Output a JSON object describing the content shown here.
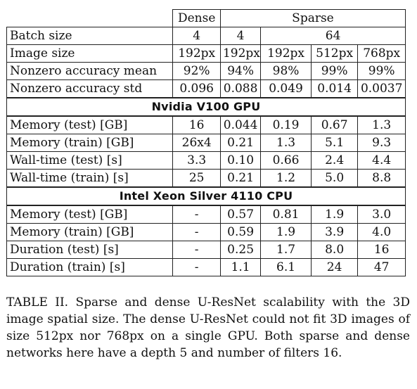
{
  "table": {
    "header": {
      "dense": "Dense",
      "sparse": "Sparse"
    },
    "rows_top": [
      {
        "label": "Batch size",
        "cells": [
          "4",
          "4",
          "64"
        ]
      },
      {
        "label": "Image size",
        "cells": [
          "192px",
          "192px",
          "192px",
          "512px",
          "768px"
        ]
      },
      {
        "label": "Nonzero accuracy mean",
        "cells": [
          "92%",
          "94%",
          "98%",
          "99%",
          "99%"
        ]
      },
      {
        "label": "Nonzero accuracy std",
        "cells": [
          "0.096",
          "0.088",
          "0.049",
          "0.014",
          "0.0037"
        ]
      }
    ],
    "section_gpu": "Nvidia V100 GPU",
    "rows_gpu": [
      {
        "label": "Memory (test) [GB]",
        "cells": [
          "16",
          "0.044",
          "0.19",
          "0.67",
          "1.3"
        ]
      },
      {
        "label": "Memory (train) [GB]",
        "cells": [
          "26x4",
          "0.21",
          "1.3",
          "5.1",
          "9.3"
        ]
      },
      {
        "label": "Wall-time (test) [s]",
        "cells": [
          "3.3",
          "0.10",
          "0.66",
          "2.4",
          "4.4"
        ]
      },
      {
        "label": "Wall-time (train) [s]",
        "cells": [
          "25",
          "0.21",
          "1.2",
          "5.0",
          "8.8"
        ]
      }
    ],
    "section_cpu": "Intel Xeon Silver 4110 CPU",
    "rows_cpu": [
      {
        "label": "Memory (test) [GB]",
        "cells": [
          "-",
          "0.57",
          "0.81",
          "1.9",
          "3.0"
        ]
      },
      {
        "label": "Memory (train) [GB]",
        "cells": [
          "-",
          "0.59",
          "1.9",
          "3.9",
          "4.0"
        ]
      },
      {
        "label": "Duration (test) [s]",
        "cells": [
          "-",
          "0.25",
          "1.7",
          "8.0",
          "16"
        ]
      },
      {
        "label": "Duration (train) [s]",
        "cells": [
          "-",
          "1.1",
          "6.1",
          "24",
          "47"
        ]
      }
    ]
  },
  "caption": "TABLE II. Sparse and dense U-ResNet scalability with the 3D image spatial size. The dense U-ResNet could not fit 3D images of size 512px nor 768px on a single GPU. Both sparse and dense networks here have a depth 5 and number of filters 16."
}
